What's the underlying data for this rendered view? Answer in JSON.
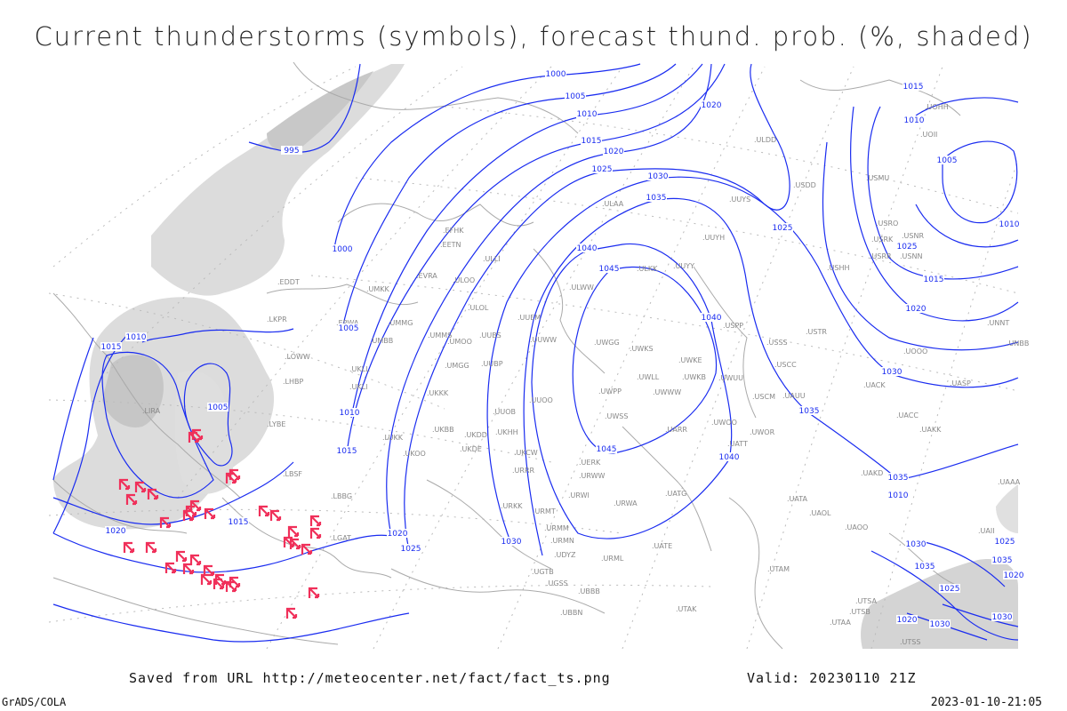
{
  "title": "Current thunderstorms (symbols), forecast thund. prob. (%, shaded)",
  "footer": {
    "saved_from": "Saved from URL http://meteocenter.net/fact/fact_ts.png",
    "valid": "Valid: 20230110 21Z",
    "software": "GrADS/COLA",
    "timestamp": "2023-01-10-21:05"
  },
  "colors": {
    "isobar": "#1a2cf0",
    "thunderstorm_symbol": "#f0305a",
    "shading": "#c8c8c8",
    "borders": "#aaaaaa"
  },
  "symbols": {
    "thunderstorm": "thunderstorm-symbol-icon"
  },
  "isobar_labels": [
    "995",
    "1000",
    "1000",
    "1005",
    "1005",
    "1010",
    "1010",
    "1015",
    "1015",
    "1020",
    "1020",
    "1020",
    "1025",
    "1025",
    "1025",
    "1030",
    "1030",
    "1030",
    "1035",
    "1035",
    "1035",
    "1040",
    "1040",
    "1040",
    "1045",
    "1045",
    "1005",
    "1010",
    "1015",
    "1020",
    "1025",
    "1030",
    "1035",
    "1010",
    "1015",
    "1005",
    "1010",
    "1015",
    "1010",
    "1020",
    "1015",
    "1020",
    "1025",
    "1030",
    "1035",
    "1030",
    "1020",
    "1025"
  ],
  "stations": [
    "LKPR",
    "EPWA",
    "LOWW",
    "LHBP",
    "LIRA",
    "LYBE",
    "LBSF",
    "LBBG",
    "LGAT",
    "UMKK",
    "UMMG",
    "UMBB",
    "UKLL",
    "UKLI",
    "LUKK",
    "UKOO",
    "EVRA",
    "EFHK",
    "EETN",
    "ULLI",
    "ULOO",
    "ULOL",
    "UUEM",
    "UMMS",
    "UMOO",
    "UUBS",
    "UMGG",
    "UUBP",
    "UUWW",
    "UKKK",
    "UUOO",
    "UUOB",
    "UKBB",
    "UKDD",
    "UKHH",
    "UKDE",
    "UKCW",
    "URRR",
    "URKK",
    "URMT",
    "URMM",
    "URMN",
    "URWI",
    "URWA",
    "UATG",
    "UATE",
    "URML",
    "UGSS",
    "UBBB",
    "UTAK",
    "UDYZ",
    "UGTB",
    "UBBN",
    "ULAA",
    "ULKK",
    "UUYY",
    "UUYH",
    "ULWW",
    "UWGG",
    "UWKS",
    "UWKE",
    "UWLL",
    "UWKB",
    "UWUU",
    "UWPP",
    "UWWW",
    "UWSS",
    "UWOO",
    "UARR",
    "UERK",
    "URWW",
    "UATT",
    "USPP",
    "USSS",
    "USCC",
    "USCM",
    "UWOR",
    "UAUU",
    "UACK",
    "UACC",
    "UAKK",
    "UAKD",
    "UATA",
    "UAOL",
    "UAOO",
    "UTAM",
    "UTSA",
    "UTSB",
    "UTAA",
    "USTR",
    "USHH",
    "USRR",
    "USNN",
    "USRK",
    "USRO",
    "USNR",
    "USMU",
    "UOOO",
    "ULDD",
    "USDD",
    "UOII",
    "UNNT",
    "UNBB",
    "UASP",
    "UAAA",
    "UOHH",
    "UUYS",
    "EDDT",
    "UAII",
    "UTSS"
  ],
  "thunderstorm_count": 35
}
